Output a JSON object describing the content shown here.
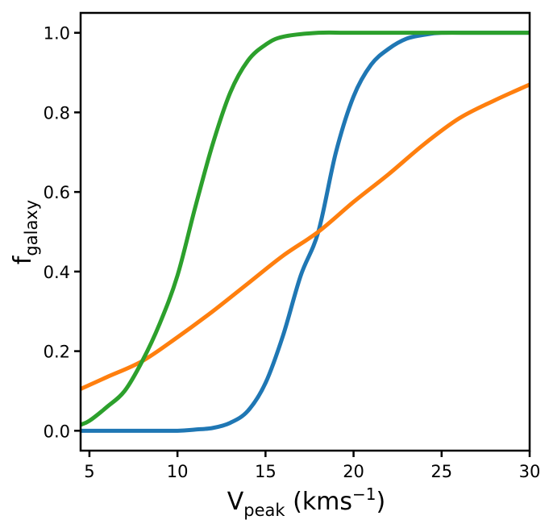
{
  "chart_data": {
    "type": "line",
    "xlabel": "V",
    "xlabel_sub": "peak",
    "xlabel_unit": "(kms",
    "xlabel_unit_sup": "−1",
    "xlabel_unit_close": ")",
    "ylabel": "f",
    "ylabel_sub": "galaxy",
    "xlim": [
      4.5,
      30
    ],
    "ylim": [
      -0.05,
      1.05
    ],
    "xticks": [
      5,
      10,
      15,
      20,
      25,
      30
    ],
    "yticks": [
      0.0,
      0.2,
      0.4,
      0.6,
      0.8,
      1.0
    ],
    "xtick_labels": [
      "5",
      "10",
      "15",
      "20",
      "25",
      "30"
    ],
    "ytick_labels": [
      "0.0",
      "0.2",
      "0.4",
      "0.6",
      "0.8",
      "1.0"
    ],
    "grid": false,
    "series": [
      {
        "color": "#1f77b4",
        "x": [
          4.5,
          6,
          8,
          10,
          11,
          12,
          13,
          14,
          15,
          16,
          17,
          18,
          19,
          20,
          21,
          22,
          23,
          24,
          25,
          27,
          30
        ],
        "y": [
          0.0,
          0.0,
          0.0,
          0.0,
          0.003,
          0.007,
          0.02,
          0.05,
          0.12,
          0.24,
          0.39,
          0.5,
          0.7,
          0.84,
          0.92,
          0.96,
          0.985,
          0.995,
          1.0,
          1.0,
          1.0
        ]
      },
      {
        "color": "#ff7f0e",
        "x": [
          4.5,
          6,
          8,
          10,
          12,
          14,
          16,
          18,
          20,
          22,
          24,
          26,
          28,
          30
        ],
        "y": [
          0.105,
          0.135,
          0.175,
          0.235,
          0.3,
          0.37,
          0.44,
          0.5,
          0.575,
          0.645,
          0.72,
          0.785,
          0.83,
          0.87
        ]
      },
      {
        "color": "#2ca02c",
        "x": [
          4.5,
          5,
          6,
          7,
          8,
          9,
          10,
          11,
          12,
          13,
          14,
          15,
          16,
          18,
          20,
          25,
          30
        ],
        "y": [
          0.015,
          0.025,
          0.06,
          0.1,
          0.175,
          0.27,
          0.39,
          0.56,
          0.72,
          0.85,
          0.93,
          0.97,
          0.99,
          1.0,
          1.0,
          1.0,
          1.0
        ]
      }
    ]
  }
}
